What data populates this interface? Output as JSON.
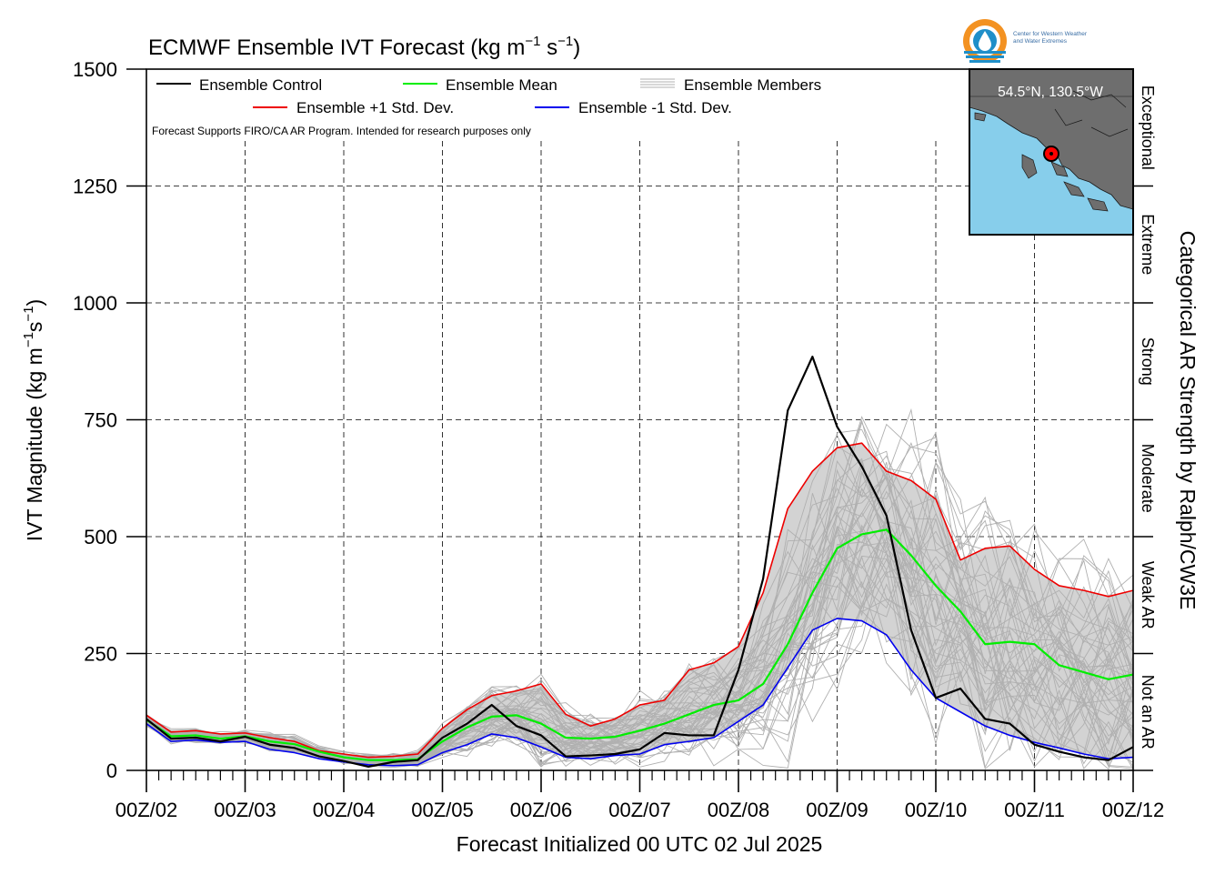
{
  "title": "ECMWF Ensemble IVT Forecast (kg m",
  "title_units": {
    "exp1": "−1",
    "mid": " s",
    "exp2": "−1",
    "tail": ")"
  },
  "xlabel": "Forecast Initialized 00 UTC 02 Jul 2025",
  "ylabel": "IVT Magnitude (kg m",
  "ylabel_units": {
    "exp1": "−1",
    "mid": "s",
    "exp2": "−1",
    "tail": ")"
  },
  "right_label": "Categorical AR Strength by Ralph/CW3E",
  "disclaimer": "Forecast Supports FIRO/CA AR Program. Intended for research purposes only",
  "logo": {
    "line1": "Center for Western Weather",
    "line2": "and Water Extremes"
  },
  "inset": {
    "location": "54.5°N, 130.5°W",
    "water_color": "#87ceeb",
    "land_color": "#6e6e6e"
  },
  "legend": {
    "control": "Ensemble Control",
    "mean": "Ensemble Mean",
    "members": "Ensemble Members",
    "plus": "Ensemble +1 Std. Dev.",
    "minus": "Ensemble -1 Std. Dev."
  },
  "categories": [
    {
      "label": "Not an AR",
      "from": 0,
      "to": 250
    },
    {
      "label": "Weak AR",
      "from": 250,
      "to": 500
    },
    {
      "label": "Moderate",
      "from": 500,
      "to": 750
    },
    {
      "label": "Strong",
      "from": 750,
      "to": 1000
    },
    {
      "label": "Extreme",
      "from": 1000,
      "to": 1250
    },
    {
      "label": "Exceptional",
      "from": 1250,
      "to": 1500
    }
  ],
  "chart_data": {
    "type": "line",
    "x_unit": "days since 00Z/02",
    "x_ticks": [
      "00Z/02",
      "00Z/03",
      "00Z/04",
      "00Z/05",
      "00Z/06",
      "00Z/07",
      "00Z/08",
      "00Z/09",
      "00Z/10",
      "00Z/11",
      "00Z/12"
    ],
    "xlim": [
      0,
      10
    ],
    "ylim": [
      0,
      1500
    ],
    "y_ticks": [
      0,
      250,
      500,
      750,
      1000,
      1250,
      1500
    ],
    "grid": "dashed",
    "legend_position": "top-left",
    "colors": {
      "control": "#000000",
      "mean": "#00ee00",
      "plus": "#ee0000",
      "minus": "#0000ee",
      "members": "#b0b0b0",
      "spread_fill": "#d3d3d3"
    },
    "series": [
      {
        "name": "Ensemble Control",
        "key": "control",
        "x": [
          0,
          0.25,
          0.5,
          0.75,
          1,
          1.25,
          1.5,
          1.75,
          2,
          2.25,
          2.5,
          2.75,
          3,
          3.25,
          3.5,
          3.75,
          4,
          4.25,
          4.5,
          4.75,
          5,
          5.25,
          5.5,
          5.75,
          6,
          6.25,
          6.5,
          6.75,
          7,
          7.25,
          7.5,
          7.75,
          8,
          8.25,
          8.5,
          8.75,
          9,
          9.25,
          9.5,
          9.75,
          10
        ],
        "y": [
          110,
          68,
          70,
          62,
          72,
          55,
          48,
          30,
          20,
          8,
          18,
          22,
          70,
          100,
          140,
          95,
          75,
          30,
          32,
          35,
          45,
          80,
          75,
          75,
          215,
          410,
          770,
          885,
          735,
          650,
          545,
          300,
          155,
          175,
          110,
          100,
          55,
          40,
          28,
          22,
          50
        ]
      },
      {
        "name": "Ensemble Mean",
        "key": "mean",
        "x": [
          0,
          0.25,
          0.5,
          0.75,
          1,
          1.25,
          1.5,
          1.75,
          2,
          2.25,
          2.5,
          2.75,
          3,
          3.25,
          3.5,
          3.75,
          4,
          4.25,
          4.5,
          4.75,
          5,
          5.25,
          5.5,
          5.75,
          6,
          6.25,
          6.5,
          6.75,
          7,
          7.25,
          7.5,
          7.75,
          8,
          8.25,
          8.5,
          8.75,
          9,
          9.25,
          9.5,
          9.75,
          10
        ],
        "y": [
          108,
          73,
          75,
          68,
          73,
          62,
          56,
          40,
          28,
          22,
          22,
          24,
          62,
          92,
          115,
          118,
          100,
          70,
          68,
          72,
          85,
          100,
          120,
          140,
          150,
          185,
          270,
          380,
          475,
          505,
          515,
          460,
          395,
          340,
          270,
          275,
          270,
          225,
          210,
          195,
          205
        ]
      },
      {
        "name": "Ensemble +1 Std. Dev.",
        "key": "plus",
        "x": [
          0,
          0.25,
          0.5,
          0.75,
          1,
          1.25,
          1.5,
          1.75,
          2,
          2.25,
          2.5,
          2.75,
          3,
          3.25,
          3.5,
          3.75,
          4,
          4.25,
          4.5,
          4.75,
          5,
          5.25,
          5.5,
          5.75,
          6,
          6.25,
          6.5,
          6.75,
          7,
          7.25,
          7.5,
          7.75,
          8,
          8.25,
          8.5,
          8.75,
          9,
          9.25,
          9.5,
          9.75,
          10
        ],
        "y": [
          118,
          82,
          85,
          78,
          80,
          70,
          62,
          42,
          35,
          28,
          30,
          35,
          90,
          130,
          160,
          170,
          185,
          120,
          95,
          110,
          140,
          150,
          215,
          230,
          265,
          380,
          560,
          640,
          690,
          700,
          640,
          620,
          580,
          450,
          475,
          480,
          430,
          395,
          385,
          372,
          385
        ]
      },
      {
        "name": "Ensemble -1 Std. Dev.",
        "key": "minus",
        "x": [
          0,
          0.25,
          0.5,
          0.75,
          1,
          1.25,
          1.5,
          1.75,
          2,
          2.25,
          2.5,
          2.75,
          3,
          3.25,
          3.5,
          3.75,
          4,
          4.25,
          4.5,
          4.75,
          5,
          5.25,
          5.5,
          5.75,
          6,
          6.25,
          6.5,
          6.75,
          7,
          7.25,
          7.5,
          7.75,
          8,
          8.25,
          8.5,
          8.75,
          9,
          9.25,
          9.5,
          9.75,
          10
        ],
        "y": [
          100,
          62,
          65,
          60,
          62,
          45,
          38,
          25,
          18,
          12,
          10,
          12,
          38,
          55,
          78,
          70,
          50,
          28,
          25,
          32,
          35,
          55,
          62,
          70,
          105,
          140,
          220,
          300,
          325,
          320,
          290,
          215,
          155,
          125,
          95,
          75,
          60,
          48,
          35,
          25,
          28
        ]
      }
    ]
  }
}
